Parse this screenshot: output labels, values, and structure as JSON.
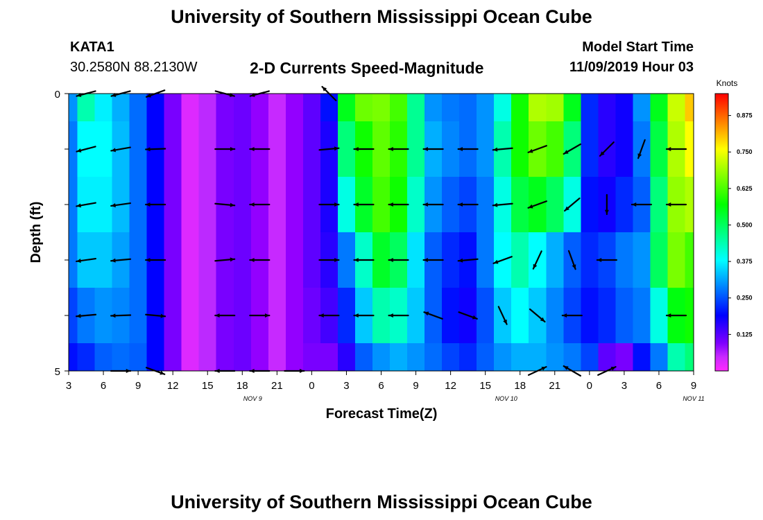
{
  "header": {
    "title": "University of Southern Mississippi Ocean Cube",
    "station_id": "KATA1",
    "station_coords": "30.2580N 88.2130W",
    "chart_title": "2-D Currents Speed-Magnitude",
    "model_label": "Model Start Time",
    "model_time": "11/09/2019 Hour 03"
  },
  "footer": {
    "title": "University of Southern Mississippi Ocean Cube"
  },
  "chart_data": {
    "type": "heatmap",
    "title": "2-D Currents Speed-Magnitude",
    "xlabel": "Forecast Time(Z)",
    "ylabel": "Depth (ft)",
    "y_ticks": [
      "0",
      "5"
    ],
    "ylim": [
      0,
      5
    ],
    "x_tick_labels": [
      "3",
      "6",
      "9",
      "12",
      "15",
      "18",
      "21",
      "0",
      "3",
      "6",
      "9",
      "12",
      "15",
      "18",
      "21",
      "0",
      "3",
      "6",
      "9"
    ],
    "date_labels": [
      {
        "label": "NOV 9",
        "tick_index": 5.3
      },
      {
        "label": "NOV 10",
        "tick_index": 12.6
      },
      {
        "label": "NOV 11",
        "tick_index": 18
      }
    ],
    "colorbar": {
      "unit": "Knots",
      "min": 0,
      "max": 0.95,
      "tick_values": [
        0.125,
        0.25,
        0.375,
        0.5,
        0.625,
        0.75,
        0.875
      ],
      "tick_labels": [
        "0.125",
        "0.250",
        "0.375",
        "0.500",
        "0.625",
        "0.750",
        "0.875"
      ]
    },
    "rows_depth_ft": [
      0,
      1,
      2,
      3,
      4,
      5
    ],
    "speed_knots": [
      [
        0.3,
        0.44,
        0.37,
        0.32,
        0.27,
        0.19,
        0.1,
        0.03,
        0.06,
        0.1,
        0.11,
        0.08,
        0.05,
        0.08,
        0.12,
        0.2,
        0.55,
        0.65,
        0.66,
        0.62,
        0.46,
        0.3,
        0.28,
        0.27,
        0.3,
        0.4,
        0.58,
        0.7,
        0.69,
        0.55,
        0.22,
        0.16,
        0.18,
        0.3,
        0.55,
        0.72,
        0.8
      ],
      [
        0.28,
        0.38,
        0.38,
        0.33,
        0.27,
        0.19,
        0.1,
        0.03,
        0.06,
        0.1,
        0.11,
        0.08,
        0.05,
        0.08,
        0.12,
        0.17,
        0.48,
        0.58,
        0.64,
        0.6,
        0.46,
        0.32,
        0.29,
        0.27,
        0.3,
        0.44,
        0.58,
        0.65,
        0.62,
        0.48,
        0.22,
        0.16,
        0.18,
        0.28,
        0.52,
        0.7,
        0.76
      ],
      [
        0.28,
        0.37,
        0.37,
        0.33,
        0.27,
        0.19,
        0.1,
        0.03,
        0.06,
        0.1,
        0.11,
        0.08,
        0.05,
        0.08,
        0.12,
        0.17,
        0.4,
        0.54,
        0.62,
        0.58,
        0.42,
        0.3,
        0.26,
        0.24,
        0.28,
        0.4,
        0.52,
        0.55,
        0.5,
        0.4,
        0.2,
        0.18,
        0.22,
        0.26,
        0.48,
        0.68,
        0.7
      ],
      [
        0.28,
        0.34,
        0.34,
        0.31,
        0.27,
        0.19,
        0.1,
        0.03,
        0.06,
        0.1,
        0.11,
        0.08,
        0.05,
        0.08,
        0.12,
        0.16,
        0.28,
        0.42,
        0.54,
        0.5,
        0.36,
        0.26,
        0.22,
        0.2,
        0.28,
        0.38,
        0.44,
        0.38,
        0.32,
        0.26,
        0.22,
        0.24,
        0.28,
        0.3,
        0.5,
        0.66,
        0.62
      ],
      [
        0.24,
        0.28,
        0.3,
        0.29,
        0.27,
        0.19,
        0.1,
        0.03,
        0.06,
        0.1,
        0.11,
        0.08,
        0.05,
        0.08,
        0.11,
        0.14,
        0.22,
        0.34,
        0.44,
        0.42,
        0.34,
        0.26,
        0.2,
        0.18,
        0.25,
        0.34,
        0.38,
        0.34,
        0.29,
        0.24,
        0.2,
        0.22,
        0.26,
        0.28,
        0.4,
        0.56,
        0.58
      ],
      [
        0.2,
        0.22,
        0.26,
        0.27,
        0.26,
        0.19,
        0.1,
        0.03,
        0.06,
        0.1,
        0.11,
        0.08,
        0.05,
        0.08,
        0.1,
        0.1,
        0.16,
        0.26,
        0.3,
        0.32,
        0.3,
        0.27,
        0.24,
        0.22,
        0.26,
        0.3,
        0.32,
        0.32,
        0.3,
        0.28,
        0.24,
        0.12,
        0.1,
        0.2,
        0.28,
        0.44,
        0.48
      ]
    ],
    "vectors": [
      {
        "t": 1,
        "depth": 0,
        "angle_deg": 195
      },
      {
        "t": 3,
        "depth": 0,
        "angle_deg": 195
      },
      {
        "t": 5,
        "depth": 0,
        "angle_deg": 200
      },
      {
        "t": 9,
        "depth": 0,
        "angle_deg": -15
      },
      {
        "t": 11,
        "depth": 0,
        "angle_deg": 195
      },
      {
        "t": 15,
        "depth": 0,
        "angle_deg": 135
      },
      {
        "t": 1,
        "depth": 1,
        "angle_deg": 195
      },
      {
        "t": 3,
        "depth": 1,
        "angle_deg": 190
      },
      {
        "t": 5,
        "depth": 1,
        "angle_deg": 182
      },
      {
        "t": 9,
        "depth": 1,
        "angle_deg": 0
      },
      {
        "t": 11,
        "depth": 1,
        "angle_deg": 180
      },
      {
        "t": 15,
        "depth": 1,
        "angle_deg": 5
      },
      {
        "t": 17,
        "depth": 1,
        "angle_deg": 180
      },
      {
        "t": 19,
        "depth": 1,
        "angle_deg": 180
      },
      {
        "t": 21,
        "depth": 1,
        "angle_deg": 180
      },
      {
        "t": 23,
        "depth": 1,
        "angle_deg": 180
      },
      {
        "t": 25,
        "depth": 1,
        "angle_deg": 185
      },
      {
        "t": 27,
        "depth": 1,
        "angle_deg": 200
      },
      {
        "t": 29,
        "depth": 1,
        "angle_deg": 210
      },
      {
        "t": 31,
        "depth": 1,
        "angle_deg": 225
      },
      {
        "t": 33,
        "depth": 1,
        "angle_deg": 250
      },
      {
        "t": 35,
        "depth": 1,
        "angle_deg": 180
      },
      {
        "t": 1,
        "depth": 2,
        "angle_deg": 190
      },
      {
        "t": 3,
        "depth": 2,
        "angle_deg": 188
      },
      {
        "t": 5,
        "depth": 2,
        "angle_deg": 180
      },
      {
        "t": 9,
        "depth": 2,
        "angle_deg": -5
      },
      {
        "t": 11,
        "depth": 2,
        "angle_deg": 180
      },
      {
        "t": 15,
        "depth": 2,
        "angle_deg": 0
      },
      {
        "t": 17,
        "depth": 2,
        "angle_deg": 180
      },
      {
        "t": 19,
        "depth": 2,
        "angle_deg": 180
      },
      {
        "t": 21,
        "depth": 2,
        "angle_deg": 180
      },
      {
        "t": 23,
        "depth": 2,
        "angle_deg": 180
      },
      {
        "t": 25,
        "depth": 2,
        "angle_deg": 185
      },
      {
        "t": 27,
        "depth": 2,
        "angle_deg": 200
      },
      {
        "t": 29,
        "depth": 2,
        "angle_deg": 220
      },
      {
        "t": 31,
        "depth": 2,
        "angle_deg": 270
      },
      {
        "t": 33,
        "depth": 2,
        "angle_deg": 180
      },
      {
        "t": 35,
        "depth": 2,
        "angle_deg": 180
      },
      {
        "t": 1,
        "depth": 3,
        "angle_deg": 188
      },
      {
        "t": 3,
        "depth": 3,
        "angle_deg": 185
      },
      {
        "t": 5,
        "depth": 3,
        "angle_deg": 180
      },
      {
        "t": 9,
        "depth": 3,
        "angle_deg": 5
      },
      {
        "t": 11,
        "depth": 3,
        "angle_deg": 180
      },
      {
        "t": 15,
        "depth": 3,
        "angle_deg": 0
      },
      {
        "t": 17,
        "depth": 3,
        "angle_deg": 180
      },
      {
        "t": 19,
        "depth": 3,
        "angle_deg": 180
      },
      {
        "t": 21,
        "depth": 3,
        "angle_deg": 180
      },
      {
        "t": 23,
        "depth": 3,
        "angle_deg": 185
      },
      {
        "t": 25,
        "depth": 3,
        "angle_deg": 200
      },
      {
        "t": 27,
        "depth": 3,
        "angle_deg": 245
      },
      {
        "t": 29,
        "depth": 3,
        "angle_deg": 290
      },
      {
        "t": 31,
        "depth": 3,
        "angle_deg": 180
      },
      {
        "t": 1,
        "depth": 4,
        "angle_deg": 185
      },
      {
        "t": 3,
        "depth": 4,
        "angle_deg": 182
      },
      {
        "t": 5,
        "depth": 4,
        "angle_deg": -5
      },
      {
        "t": 9,
        "depth": 4,
        "angle_deg": 180
      },
      {
        "t": 11,
        "depth": 4,
        "angle_deg": 0
      },
      {
        "t": 15,
        "depth": 4,
        "angle_deg": 180
      },
      {
        "t": 17,
        "depth": 4,
        "angle_deg": 180
      },
      {
        "t": 19,
        "depth": 4,
        "angle_deg": 180
      },
      {
        "t": 21,
        "depth": 4,
        "angle_deg": 160
      },
      {
        "t": 23,
        "depth": 4,
        "angle_deg": -20
      },
      {
        "t": 25,
        "depth": 4,
        "angle_deg": -65
      },
      {
        "t": 27,
        "depth": 4,
        "angle_deg": -40
      },
      {
        "t": 29,
        "depth": 4,
        "angle_deg": 180
      },
      {
        "t": 35,
        "depth": 4,
        "angle_deg": 180
      },
      {
        "t": 3,
        "depth": 5,
        "angle_deg": 0
      },
      {
        "t": 5,
        "depth": 5,
        "angle_deg": -20
      },
      {
        "t": 9,
        "depth": 5,
        "angle_deg": 180
      },
      {
        "t": 11,
        "depth": 5,
        "angle_deg": 180
      },
      {
        "t": 13,
        "depth": 5,
        "angle_deg": 0
      },
      {
        "t": 27,
        "depth": 5,
        "angle_deg": 25
      },
      {
        "t": 29,
        "depth": 5,
        "angle_deg": 150
      },
      {
        "t": 31,
        "depth": 5,
        "angle_deg": 25
      }
    ]
  }
}
